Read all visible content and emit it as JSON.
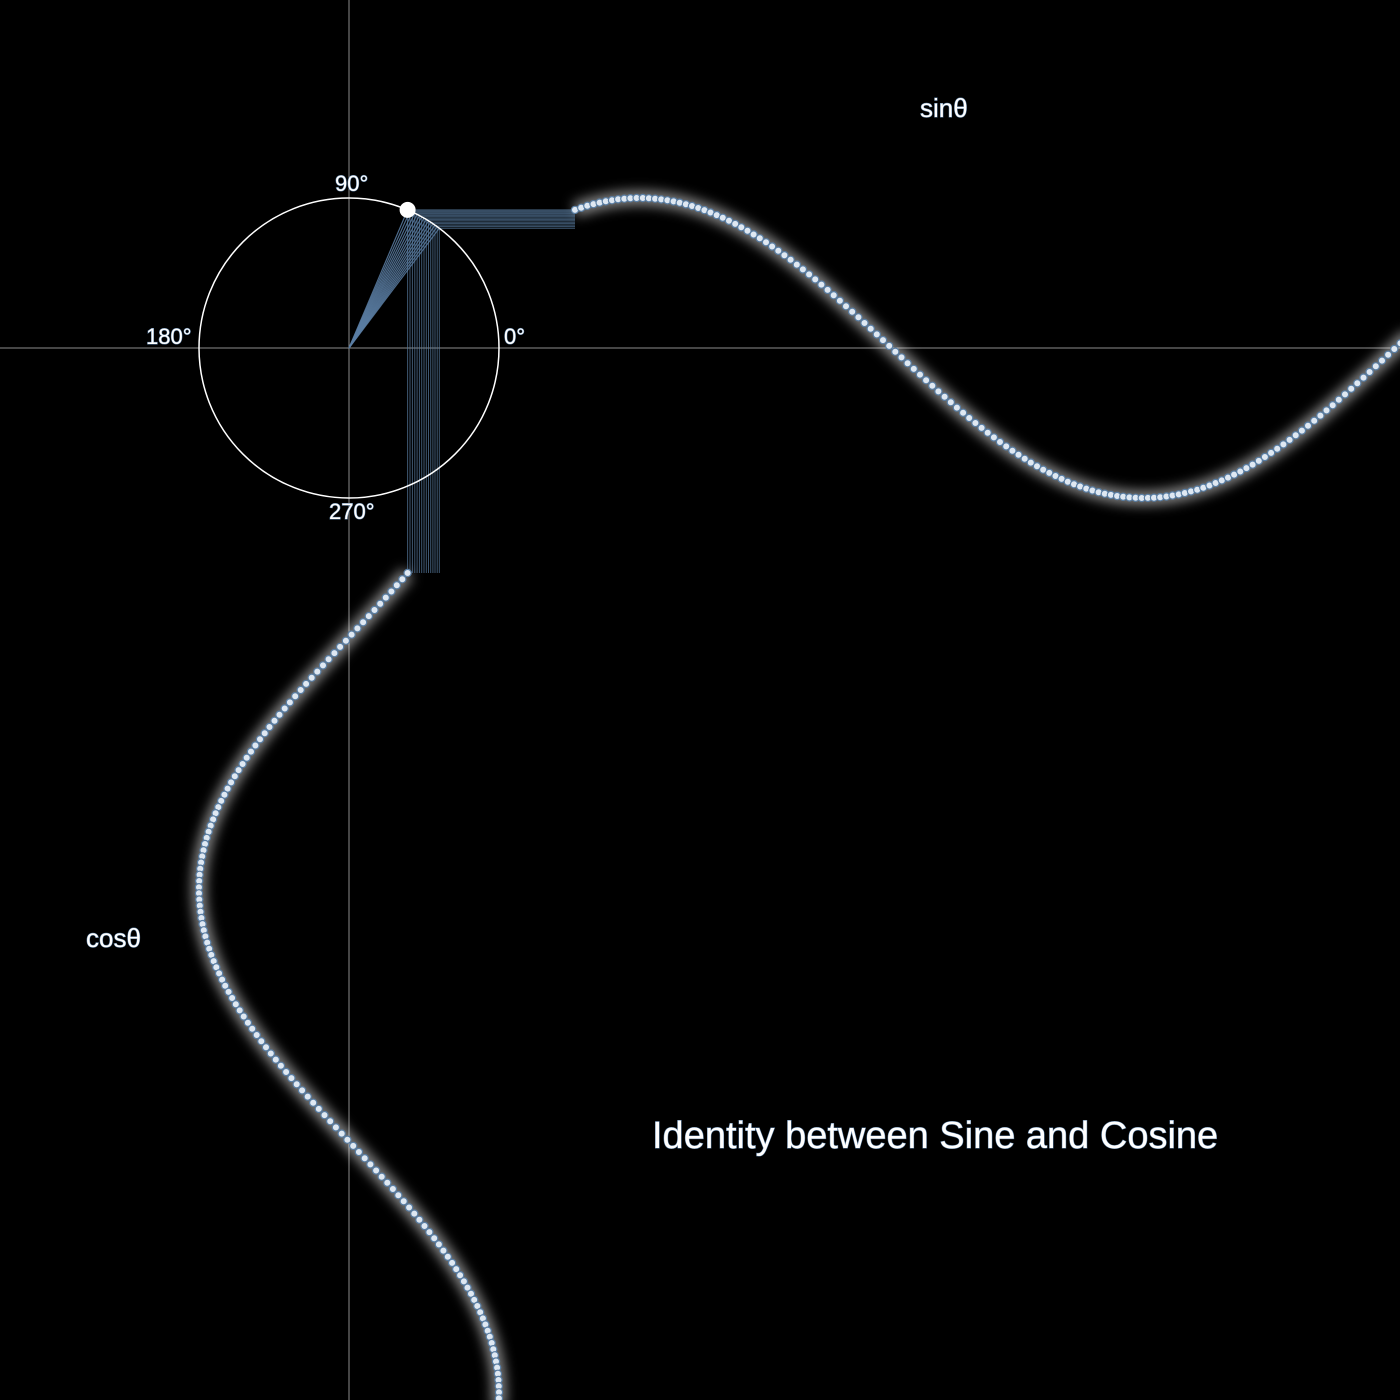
{
  "title": "Identity between Sine and Cosine",
  "sine_label": "sinθ",
  "cosine_label": "cosθ",
  "degree_labels": {
    "deg0": "0°",
    "deg90": "90°",
    "deg180": "180°",
    "deg270": "270°"
  },
  "colors": {
    "background": "#000000",
    "axis": "#8c8c8c",
    "circle": "#ffffff",
    "accent": "#5a7ea3",
    "glow": "#ffffff"
  },
  "angle_degrees": 67,
  "trail_degrees": 14,
  "cycles_shown": 3
}
